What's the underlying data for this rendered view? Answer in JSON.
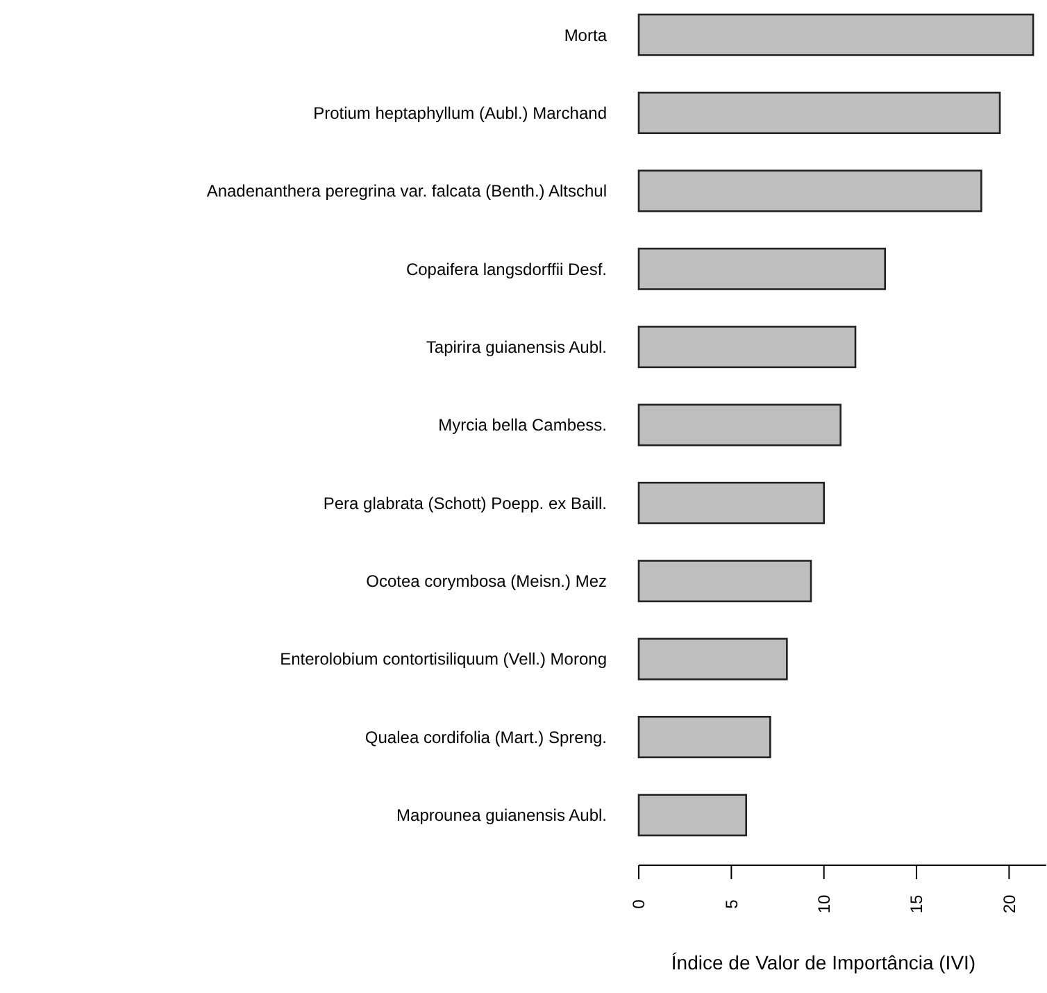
{
  "chart_data": {
    "type": "bar",
    "orientation": "horizontal",
    "xlabel": "Índice de Valor de Importância (IVI)",
    "categories": [
      "Morta",
      "Protium heptaphyllum (Aubl.) Marchand",
      "Anadenanthera peregrina var. falcata (Benth.) Altschul",
      "Copaifera langsdorffii Desf.",
      "Tapirira guianensis Aubl.",
      "Myrcia bella Cambess.",
      "Pera glabrata (Schott) Poepp. ex Baill.",
      "Ocotea corymbosa (Meisn.) Mez",
      "Enterolobium contortisiliquum (Vell.) Morong",
      "Qualea cordifolia (Mart.) Spreng.",
      "Maprounea guianensis Aubl."
    ],
    "values": [
      21.3,
      19.5,
      18.5,
      13.3,
      11.7,
      10.9,
      10.0,
      9.3,
      8.0,
      7.1,
      5.8
    ],
    "color": "#bebebe",
    "xlim": [
      0,
      22
    ],
    "xticks": [
      0,
      5,
      10,
      15,
      20
    ],
    "grid": false
  }
}
